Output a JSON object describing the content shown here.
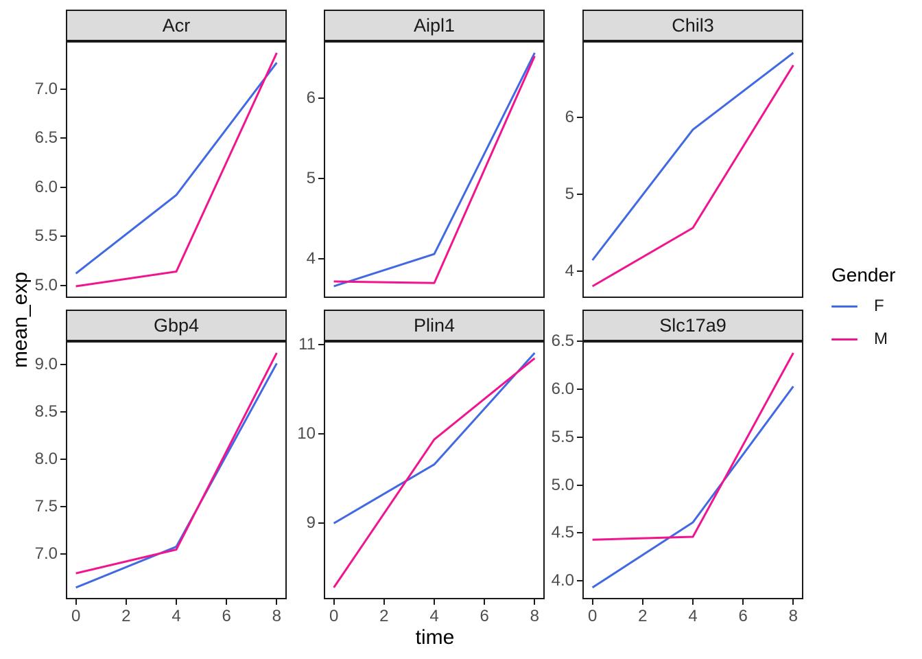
{
  "chart_data": {
    "type": "line",
    "faceted": true,
    "xlabel": "time",
    "ylabel": "mean_exp",
    "x": [
      0,
      4,
      8
    ],
    "x_ticks": [
      "0",
      "2",
      "4",
      "6",
      "8"
    ],
    "xlim": [
      -0.4,
      8.4
    ],
    "grid": false,
    "y_expansion_mult": 0.05,
    "legend": {
      "title": "Gender",
      "position": "right",
      "entries": [
        {
          "label": "F",
          "color": "#4169E1"
        },
        {
          "label": "M",
          "color": "#F1148F"
        }
      ]
    },
    "facets": [
      {
        "title": "Acr",
        "y_ticks": [
          "5.0",
          "5.5",
          "6.0",
          "6.5",
          "7.0"
        ],
        "series": [
          {
            "name": "F",
            "values": [
              5.12,
              5.92,
              7.27
            ]
          },
          {
            "name": "M",
            "values": [
              4.99,
              5.14,
              7.37
            ]
          }
        ]
      },
      {
        "title": "Aipl1",
        "y_ticks": [
          "4",
          "5",
          "6"
        ],
        "series": [
          {
            "name": "F",
            "values": [
              3.66,
              4.06,
              6.56
            ]
          },
          {
            "name": "M",
            "values": [
              3.72,
              3.7,
              6.52
            ]
          }
        ]
      },
      {
        "title": "Chil3",
        "y_ticks": [
          "4",
          "5",
          "6"
        ],
        "series": [
          {
            "name": "F",
            "values": [
              4.14,
              5.84,
              6.84
            ]
          },
          {
            "name": "M",
            "values": [
              3.8,
              4.56,
              6.68
            ]
          }
        ]
      },
      {
        "title": "Gbp4",
        "y_ticks": [
          "7.0",
          "7.5",
          "8.0",
          "8.5",
          "9.0"
        ],
        "series": [
          {
            "name": "F",
            "values": [
              6.65,
              7.08,
              9.01
            ]
          },
          {
            "name": "M",
            "values": [
              6.8,
              7.05,
              9.12
            ]
          }
        ]
      },
      {
        "title": "Plin4",
        "y_ticks": [
          "9",
          "10",
          "11"
        ],
        "series": [
          {
            "name": "F",
            "values": [
              9.0,
              9.66,
              10.91
            ]
          },
          {
            "name": "M",
            "values": [
              8.28,
              9.94,
              10.85
            ]
          }
        ]
      },
      {
        "title": "Slc17a9",
        "y_ticks": [
          "4.0",
          "4.5",
          "5.0",
          "5.5",
          "6.0",
          "6.5"
        ],
        "series": [
          {
            "name": "F",
            "values": [
              3.93,
              4.61,
              6.03
            ]
          },
          {
            "name": "M",
            "values": [
              4.43,
              4.46,
              6.38
            ]
          }
        ]
      }
    ]
  }
}
